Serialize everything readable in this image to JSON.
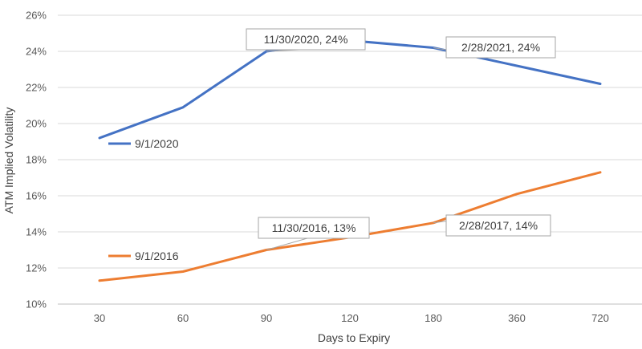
{
  "chart_data": {
    "type": "line",
    "categories": [
      "30",
      "60",
      "90",
      "120",
      "180",
      "360",
      "720"
    ],
    "xlabel": "Days to Expiry",
    "ylabel": "ATM Implied Volatility",
    "ylim": [
      0.1,
      0.26
    ],
    "yticks": [
      "10%",
      "12%",
      "14%",
      "16%",
      "18%",
      "20%",
      "22%",
      "24%",
      "26%"
    ],
    "grid": "horizontal",
    "series": [
      {
        "name": "9/1/2020",
        "color": "#4472C4",
        "values": [
          0.192,
          0.209,
          0.24,
          0.246,
          0.242,
          0.232,
          0.222
        ]
      },
      {
        "name": "9/1/2016",
        "color": "#ED7D31",
        "values": [
          0.113,
          0.118,
          0.13,
          0.137,
          0.145,
          0.161,
          0.173
        ]
      }
    ],
    "annotations": [
      {
        "text": "11/30/2020, 24%",
        "series": 0,
        "point": 2
      },
      {
        "text": "2/28/2021, 24%",
        "series": 0,
        "point": 4
      },
      {
        "text": "11/30/2016, 13%",
        "series": 1,
        "point": 2
      },
      {
        "text": "2/28/2017, 14%",
        "series": 1,
        "point": 4
      }
    ]
  }
}
